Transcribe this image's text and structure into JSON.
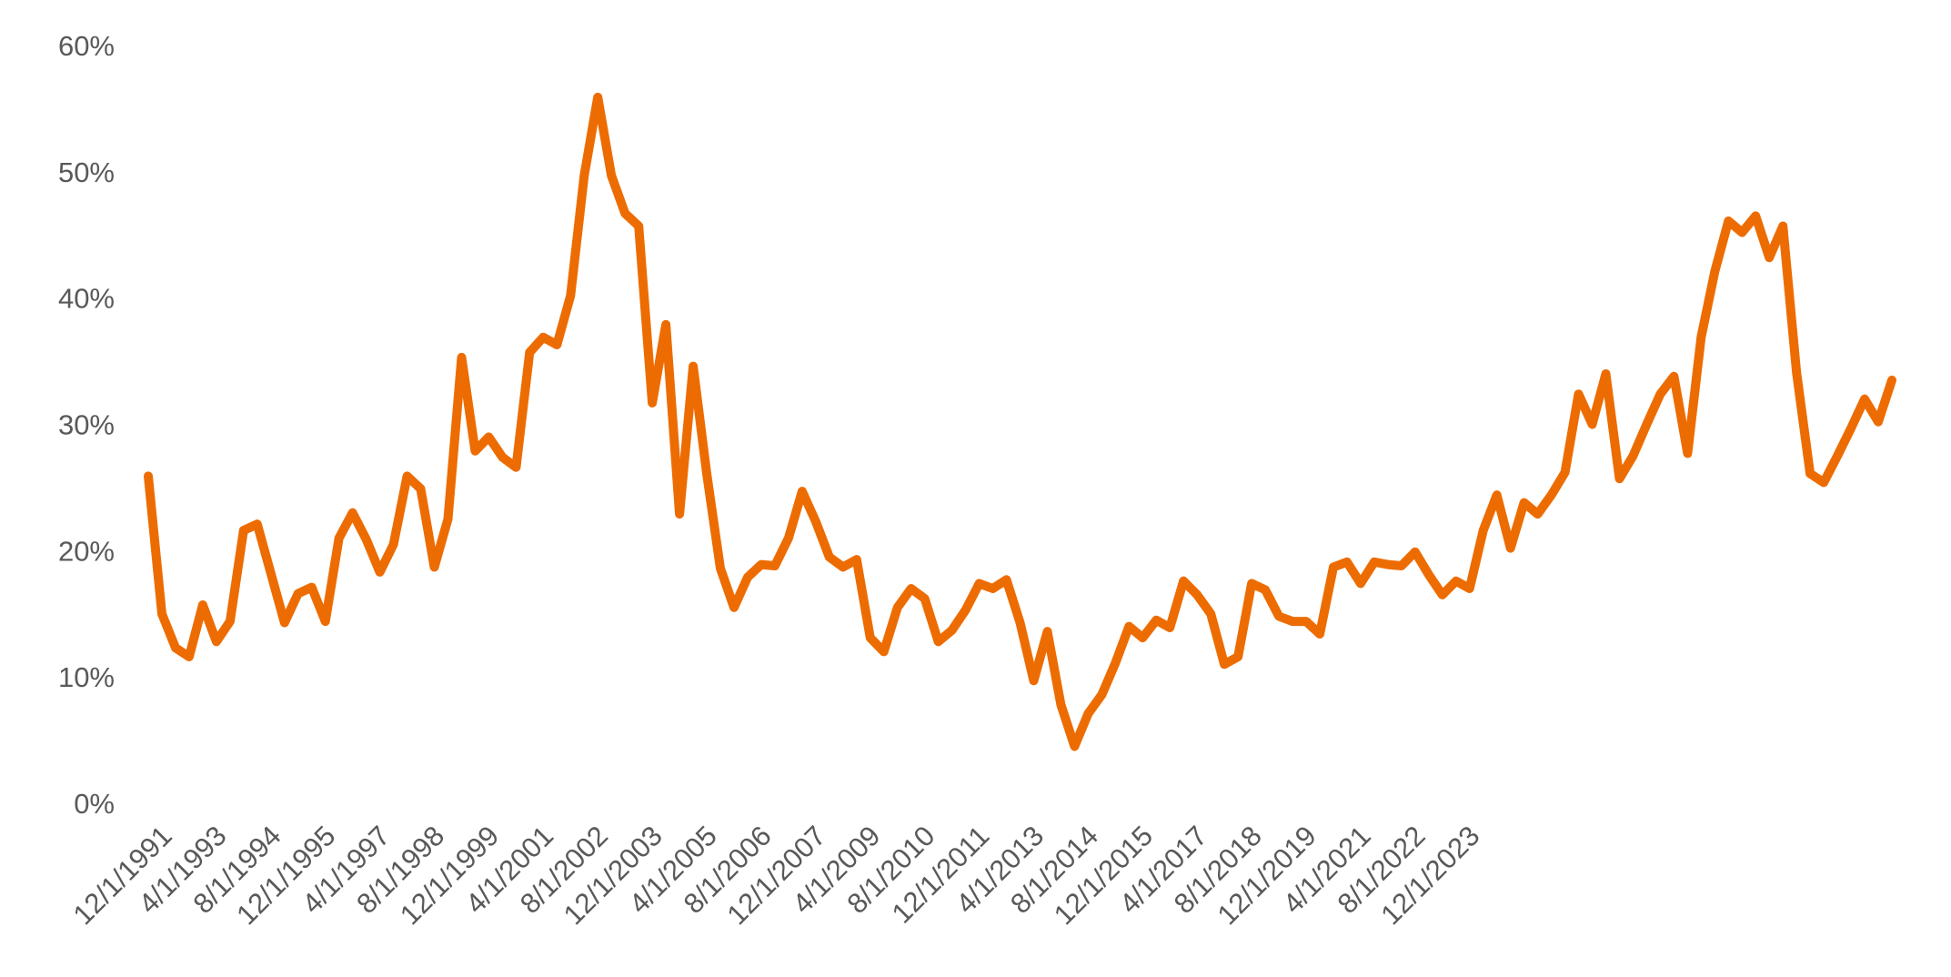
{
  "chart_data": {
    "type": "line",
    "title": "",
    "xlabel": "",
    "ylabel": "",
    "ylim": [
      0,
      0.6
    ],
    "grid": false,
    "legend": "none",
    "y_ticks": [
      {
        "value": 0,
        "label": "0%"
      },
      {
        "value": 0.1,
        "label": "10%"
      },
      {
        "value": 0.2,
        "label": "20%"
      },
      {
        "value": 0.3,
        "label": "30%"
      },
      {
        "value": 0.4,
        "label": "40%"
      },
      {
        "value": 0.5,
        "label": "50%"
      },
      {
        "value": 0.6,
        "label": "60%"
      }
    ],
    "x_tick_labels": [
      "12/1/1991",
      "4/1/1993",
      "8/1/1994",
      "12/1/1995",
      "4/1/1997",
      "8/1/1998",
      "12/1/1999",
      "4/1/2001",
      "8/1/2002",
      "12/1/2003",
      "4/1/2005",
      "8/1/2006",
      "12/1/2007",
      "4/1/2009",
      "8/1/2010",
      "12/1/2011",
      "4/1/2013",
      "8/1/2014",
      "12/1/2015",
      "4/1/2017",
      "8/1/2018",
      "12/1/2019",
      "4/1/2021",
      "8/1/2022",
      "12/1/2023"
    ],
    "x_tick_every": 4,
    "x_start": "12/1/1991",
    "x_step_months": 4,
    "series": [
      {
        "color": "#ED6C02",
        "values": [
          0.259,
          0.15,
          0.123,
          0.116,
          0.157,
          0.128,
          0.144,
          0.216,
          0.221,
          0.182,
          0.143,
          0.166,
          0.171,
          0.144,
          0.21,
          0.23,
          0.209,
          0.183,
          0.205,
          0.259,
          0.249,
          0.187,
          0.225,
          0.353,
          0.279,
          0.29,
          0.274,
          0.266,
          0.357,
          0.369,
          0.363,
          0.402,
          0.497,
          0.559,
          0.497,
          0.467,
          0.457,
          0.317,
          0.379,
          0.229,
          0.346,
          0.261,
          0.186,
          0.155,
          0.179,
          0.189,
          0.188,
          0.21,
          0.247,
          0.223,
          0.195,
          0.187,
          0.193,
          0.131,
          0.12,
          0.155,
          0.17,
          0.162,
          0.128,
          0.137,
          0.153,
          0.174,
          0.17,
          0.177,
          0.143,
          0.097,
          0.136,
          0.078,
          0.045,
          0.071,
          0.086,
          0.111,
          0.14,
          0.131,
          0.145,
          0.139,
          0.176,
          0.165,
          0.15,
          0.11,
          0.116,
          0.174,
          0.169,
          0.148,
          0.144,
          0.144,
          0.134,
          0.187,
          0.191,
          0.174,
          0.191,
          0.189,
          0.188,
          0.199,
          0.181,
          0.165,
          0.176,
          0.17,
          0.216,
          0.244,
          0.202,
          0.238,
          0.229,
          0.244,
          0.262,
          0.324,
          0.3,
          0.34,
          0.257,
          0.275,
          0.3,
          0.324,
          0.338,
          0.277,
          0.369,
          0.421,
          0.461,
          0.452,
          0.465,
          0.432,
          0.457,
          0.341,
          0.261,
          0.254,
          0.275,
          0.297,
          0.32,
          0.302,
          0.335
        ]
      }
    ]
  }
}
